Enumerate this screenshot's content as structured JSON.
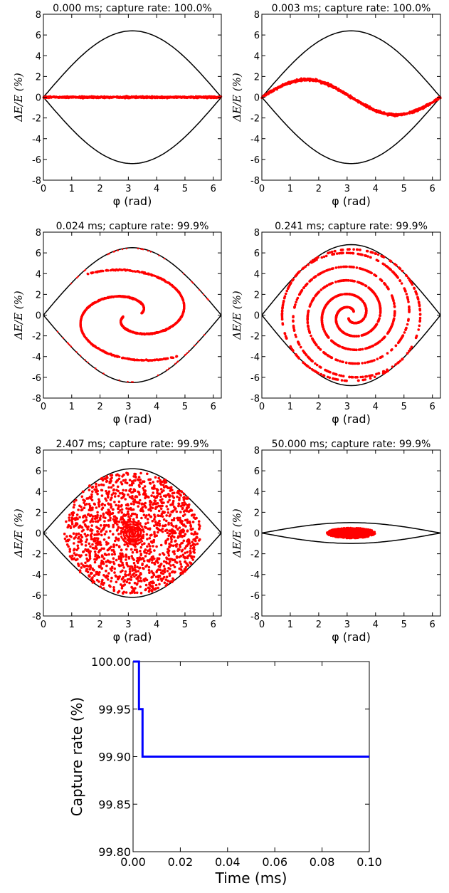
{
  "colors": {
    "separatrix": "#000000",
    "particles": "#ff0000",
    "capture_line": "#0000ff"
  },
  "chart_data": [
    {
      "type": "scatter",
      "title": "0.000 ms; capture rate: 100.0%",
      "xlabel": "φ (rad)",
      "ylabel": "ΔE/E (%)",
      "xlim": [
        0,
        6.283
      ],
      "ylim": [
        -8,
        8
      ],
      "x_ticks": [
        0,
        1,
        2,
        3,
        4,
        5,
        6
      ],
      "y_ticks": [
        -8,
        -6,
        -4,
        -2,
        0,
        2,
        4,
        6,
        8
      ],
      "separatrix_height": 6.4,
      "distribution": "flat band",
      "series": [
        {
          "x": [
            0,
            0.5,
            1.0,
            1.5,
            2.0,
            2.5,
            3.0,
            3.5,
            4.0,
            4.5,
            5.0,
            5.5,
            6.0,
            6.28
          ],
          "y": [
            0,
            0,
            0,
            0,
            0,
            0,
            0,
            0,
            0,
            0,
            0,
            0,
            0,
            0
          ]
        }
      ]
    },
    {
      "type": "scatter",
      "title": "0.003 ms; capture rate: 100.0%",
      "xlabel": "φ (rad)",
      "ylabel": "ΔE/E (%)",
      "xlim": [
        0,
        6.283
      ],
      "ylim": [
        -8,
        8
      ],
      "x_ticks": [
        0,
        1,
        2,
        3,
        4,
        5,
        6
      ],
      "y_ticks": [
        -8,
        -6,
        -4,
        -2,
        0,
        2,
        4,
        6,
        8
      ],
      "separatrix_height": 6.4,
      "distribution": "sine band",
      "series": [
        {
          "x": [
            0,
            0.5,
            1.0,
            1.5,
            2.0,
            2.5,
            3.0,
            3.5,
            4.0,
            4.5,
            5.0,
            5.5,
            6.0,
            6.28
          ],
          "y": [
            0,
            0.8,
            1.4,
            1.7,
            1.5,
            0.9,
            0.1,
            -0.7,
            -1.3,
            -1.7,
            -1.6,
            -1.2,
            -0.4,
            0
          ]
        }
      ]
    },
    {
      "type": "scatter",
      "title": "0.024 ms; capture rate: 99.9%",
      "xlabel": "φ (rad)",
      "ylabel": "ΔE/E (%)",
      "xlim": [
        0,
        6.283
      ],
      "ylim": [
        -8,
        8
      ],
      "x_ticks": [
        0,
        1,
        2,
        3,
        4,
        5,
        6
      ],
      "y_ticks": [
        -8,
        -6,
        -4,
        -2,
        0,
        2,
        4,
        6,
        8
      ],
      "separatrix_height": 6.5,
      "distribution": "S-shaped filament",
      "series": [
        {
          "x": [
            3.0,
            3.4,
            4.3,
            5.2,
            5.6,
            5.5,
            4.9,
            4.1,
            3.5,
            3.2,
            3.0,
            2.8,
            2.3,
            1.4,
            0.7,
            0.7,
            1.2,
            2.0,
            2.8,
            3.1
          ],
          "y": [
            -1.0,
            -3.6,
            -4.2,
            -3.0,
            -0.5,
            1.6,
            3.3,
            4.3,
            4.6,
            4.5,
            4.1,
            3.8,
            4.2,
            3.6,
            1.8,
            -1.0,
            -2.8,
            -3.5,
            -2.5,
            -0.5
          ]
        }
      ]
    },
    {
      "type": "scatter",
      "title": "0.241 ms; capture rate: 99.9%",
      "xlabel": "φ (rad)",
      "ylabel": "ΔE/E (%)",
      "xlim": [
        0,
        6.283
      ],
      "ylim": [
        -8,
        8
      ],
      "x_ticks": [
        0,
        1,
        2,
        3,
        4,
        5,
        6
      ],
      "y_ticks": [
        -8,
        -6,
        -4,
        -2,
        0,
        2,
        4,
        6,
        8
      ],
      "separatrix_height": 6.8,
      "distribution": "double spiral",
      "series": [
        {
          "x": [
            3.14,
            3.6,
            3.14,
            2.3,
            3.14,
            4.5,
            3.14,
            1.5,
            3.14,
            5.3,
            3.14,
            0.8
          ],
          "y": [
            0,
            1.3,
            2.5,
            0,
            -3.5,
            0,
            4.8,
            0,
            -5.8,
            0,
            6.5,
            0
          ]
        }
      ]
    },
    {
      "type": "scatter",
      "title": "2.407 ms; capture rate: 99.9%",
      "xlabel": "φ (rad)",
      "ylabel": "ΔE/E (%)",
      "xlim": [
        0,
        6.283
      ],
      "ylim": [
        -8,
        8
      ],
      "x_ticks": [
        0,
        1,
        2,
        3,
        4,
        5,
        6
      ],
      "y_ticks": [
        -8,
        -6,
        -4,
        -2,
        0,
        2,
        4,
        6,
        8
      ],
      "separatrix_height": 6.2,
      "distribution": "filled bucket with central spiral",
      "series": [
        {
          "x": [
            1.0,
            2.0,
            3.1,
            4.2,
            5.2,
            3.1,
            3.1,
            1.5,
            4.7
          ],
          "y": [
            0,
            3.5,
            5.8,
            3.5,
            0,
            -5.9,
            0,
            -3.0,
            -3.0
          ]
        }
      ]
    },
    {
      "type": "scatter",
      "title": "50.000 ms; capture rate: 99.9%",
      "xlabel": "φ (rad)",
      "ylabel": "ΔE/E (%)",
      "xlim": [
        0,
        6.283
      ],
      "ylim": [
        -8,
        8
      ],
      "x_ticks": [
        0,
        1,
        2,
        3,
        4,
        5,
        6
      ],
      "y_ticks": [
        -8,
        -6,
        -4,
        -2,
        0,
        2,
        4,
        6,
        8
      ],
      "separatrix_height": 1.0,
      "distribution": "compact ellipse",
      "series": [
        {
          "x": [
            2.3,
            2.7,
            3.14,
            3.6,
            4.0,
            3.14
          ],
          "y": [
            0,
            0.4,
            0.5,
            0.4,
            0,
            -0.5
          ]
        }
      ]
    },
    {
      "type": "line",
      "title": "",
      "xlabel": "Time (ms)",
      "ylabel": "Capture rate (%)",
      "xlim": [
        0,
        0.1
      ],
      "ylim": [
        99.8,
        100.0
      ],
      "x_ticks": [
        "0.00",
        "0.02",
        "0.04",
        "0.06",
        "0.08",
        "0.10"
      ],
      "y_ticks": [
        "99.80",
        "99.85",
        "99.90",
        "99.95",
        "100.00"
      ],
      "series": [
        {
          "x": [
            0.0,
            0.0025,
            0.0025,
            0.004,
            0.004,
            0.1
          ],
          "y": [
            100.0,
            100.0,
            99.95,
            99.95,
            99.9,
            99.9
          ]
        }
      ]
    }
  ]
}
